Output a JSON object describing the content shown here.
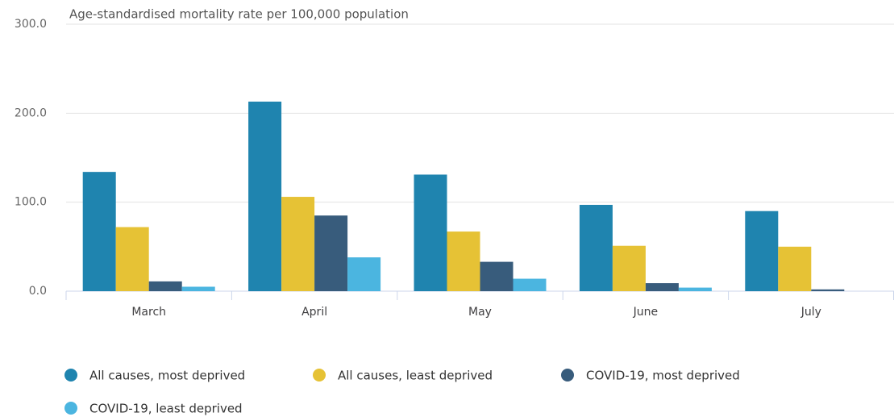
{
  "chart_data": {
    "type": "bar",
    "title": "Age-standardised mortality rate per 100,000 population",
    "categories": [
      "March",
      "April",
      "May",
      "June",
      "July"
    ],
    "series": [
      {
        "name": "All causes, most deprived",
        "color": "#1f84af",
        "values": [
          134,
          213,
          131,
          97,
          90
        ]
      },
      {
        "name": "All causes, least deprived",
        "color": "#e6c235",
        "values": [
          72,
          106,
          67,
          51,
          50
        ]
      },
      {
        "name": "COVID-19, most deprived",
        "color": "#385c7c",
        "values": [
          11,
          85,
          33,
          9,
          2
        ]
      },
      {
        "name": "COVID-19, least deprived",
        "color": "#4bb5e0",
        "values": [
          5,
          38,
          14,
          4,
          0
        ]
      }
    ],
    "ylim": [
      0,
      300
    ],
    "yticks": [
      {
        "value": 0,
        "label": "0.0"
      },
      {
        "value": 100,
        "label": "100.0"
      },
      {
        "value": 200,
        "label": "200.0"
      },
      {
        "value": 300,
        "label": "300.0"
      }
    ],
    "grid": true
  }
}
